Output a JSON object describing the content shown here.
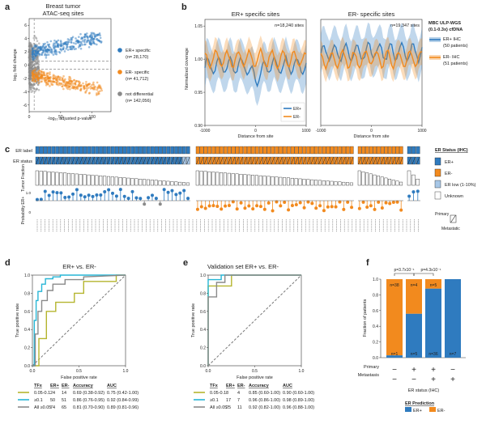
{
  "panels": {
    "a": {
      "letter": "a",
      "title": "Breast tumor",
      "subtitle": "ATAC-seq sites",
      "xlabel": "-log₁₀ adjusted p-value",
      "ylabel": "log₂ fold change",
      "xticks": [
        "0",
        "50",
        "100"
      ],
      "yticks": [
        "6",
        "4",
        "2",
        "0",
        "-2",
        "-4",
        "-6"
      ],
      "legend": [
        {
          "label": "ER+ specific",
          "count": "(n= 28,170)",
          "color": "#2f7bbf"
        },
        {
          "label": "ER- specific",
          "count": "(n= 41,712)",
          "color": "#f28a1e"
        },
        {
          "label": "not differential",
          "count": "(n= 142,056)",
          "color": "#8a8a8a"
        }
      ]
    },
    "b": {
      "letter": "b",
      "ylabel": "Normalized coverage",
      "xlabel": "Distance from site",
      "left_title": "ER+ specific sites",
      "right_title": "ER- specific sites",
      "left_n": "n=18,240 sites",
      "right_n": "n=19,347 sites",
      "yticks": [
        "1.05",
        "1.00",
        "0.95",
        "0.90"
      ],
      "xticks": [
        "-1000",
        "0",
        "1000"
      ],
      "legend_title1": "MBC ULP-WGS",
      "legend_title2": "(0.1-0.3x) cfDNA",
      "legend": [
        {
          "label": "ER+ IHC",
          "sub": "(50 patients)",
          "color": "#2f7bbf"
        },
        {
          "label": "ER- IHC",
          "sub": "(51 patients)",
          "color": "#f28a1e"
        }
      ],
      "inset_legend": [
        "ER+",
        "ER-"
      ]
    },
    "c": {
      "letter": "c",
      "row_labels": [
        "ER label",
        "ER status",
        "Tumor Fraction",
        "Probability ER+"
      ],
      "prob_ticks": [
        "1.0",
        "0"
      ],
      "legend_title": "ER Status (IHC)",
      "legend": [
        {
          "label": "ER+",
          "color": "#2f7bbf"
        },
        {
          "label": "ER-",
          "color": "#f28a1e"
        },
        {
          "label": "ER low (1-10%)",
          "color": "#a7c7e7"
        },
        {
          "label": "Unknown",
          "color": "#ffffff"
        }
      ],
      "primary_label": "Primary",
      "metastatic_label": "Metastatic"
    },
    "d": {
      "letter": "d",
      "title": "ER+ vs. ER-",
      "xlabel": "False positive rate",
      "ylabel": "True positive rate",
      "xticks": [
        "0.0",
        "0.5",
        "1.0"
      ],
      "yticks": [
        "1.0",
        "0.8",
        "0.6",
        "0.4",
        "0.2",
        "0.0"
      ],
      "table_headers": [
        "TFx",
        "ER+",
        "ER-",
        "Accuracy",
        "AUC"
      ],
      "table_rows": [
        [
          "0.05-0.1",
          "24",
          "14",
          "0.69 (0.38-0.92)",
          "0.75 (0.42-1.00)"
        ],
        [
          "≥0.1",
          "50",
          "51",
          "0.86 (0.76-0.95)",
          "0.92 (0.84-0.99)"
        ],
        [
          "All ≥0.05",
          "74",
          "65",
          "0.81 (0.70-0.90)",
          "0.89 (0.81-0.96)"
        ]
      ]
    },
    "e": {
      "letter": "e",
      "title": "Validation set ER+ vs. ER-",
      "xlabel": "False positive rate",
      "ylabel": "True positive rate",
      "xticks": [
        "0.0",
        "0.5",
        "1.0"
      ],
      "yticks": [
        "1.0",
        "0.8",
        "0.6",
        "0.4",
        "0.2",
        "0.0"
      ],
      "table_headers": [
        "TFx",
        "ER+",
        "ER-",
        "Accuracy",
        "AUC"
      ],
      "table_rows": [
        [
          "0.05-0.1",
          "8",
          "4",
          "0.85 (0.60-1.00)",
          "0.90 (0.60-1.00)"
        ],
        [
          "≥0.1",
          "17",
          "7",
          "0.96 (0.86-1.00)",
          "0.98 (0.89-1.00)"
        ],
        [
          "All ≥0.05",
          "25",
          "11",
          "0.92 (0.82-1.00)",
          "0.96 (0.88-1.00)"
        ]
      ]
    },
    "f": {
      "letter": "f",
      "ylabel": "Fraction of patients",
      "xlabel": "ER status (IHC)",
      "yticks": [
        "1.0",
        "0.8",
        "0.6",
        "0.4",
        "0.2",
        "0.0"
      ],
      "pvals": [
        "p=3.7x10⁻¹",
        "p=4.3x10⁻¹"
      ],
      "row_labels": [
        "Primary",
        "Metastasis"
      ],
      "signs_primary": [
        "−",
        "+",
        "+",
        "−"
      ],
      "signs_meta": [
        "−",
        "−",
        "+",
        "+"
      ],
      "legend_title": "ER Prediction",
      "legend": [
        {
          "label": "ER+",
          "color": "#2f7bbf"
        },
        {
          "label": "ER-",
          "color": "#f28a1e"
        }
      ]
    }
  },
  "chart_data": [
    {
      "type": "scatter",
      "title": "Breast tumor ATAC-seq sites",
      "xlabel": "-log₁₀ adjusted p-value",
      "ylabel": "log₂ fold change",
      "xlim": [
        0,
        130
      ],
      "ylim": [
        -7,
        7
      ],
      "series": [
        {
          "name": "ER+ specific",
          "count": 28170
        },
        {
          "name": "ER- specific",
          "count": 41712
        },
        {
          "name": "not differential",
          "count": 142056
        }
      ]
    },
    {
      "type": "line",
      "title": "ER+ specific sites",
      "xlim": [
        -1000,
        1000
      ],
      "ylim": [
        0.9,
        1.06
      ],
      "series": [
        {
          "name": "ER+ IHC",
          "level": 0.99
        },
        {
          "name": "ER- IHC",
          "level": 1.0
        }
      ]
    },
    {
      "type": "line",
      "title": "ER- specific sites",
      "xlim": [
        -1000,
        1000
      ],
      "ylim": [
        0.9,
        1.06
      ],
      "series": [
        {
          "name": "ER+ IHC",
          "level": 1.01
        },
        {
          "name": "ER- IHC",
          "level": 1.0
        }
      ]
    },
    {
      "type": "line",
      "title": "ER+ vs. ER-",
      "xlim": [
        0,
        1
      ],
      "ylim": [
        0,
        1
      ],
      "series": [
        {
          "name": "0.05-0.1",
          "color": "#b5b52e",
          "x": [
            0,
            0.07,
            0.07,
            0.15,
            0.15,
            0.25,
            0.25,
            0.45,
            0.45,
            0.55,
            0.55,
            0.9,
            0.9,
            1.0
          ],
          "y": [
            0,
            0,
            0.3,
            0.3,
            0.6,
            0.6,
            0.7,
            0.7,
            0.8,
            0.8,
            0.93,
            0.93,
            1.0,
            1.0
          ]
        },
        {
          "name": "≥0.1",
          "color": "#27b6d6",
          "x": [
            0,
            0.02,
            0.02,
            0.04,
            0.04,
            0.06,
            0.06,
            0.1,
            0.1,
            0.14,
            0.14,
            0.22,
            0.22,
            0.3,
            0.3,
            1.0
          ],
          "y": [
            0,
            0,
            0.5,
            0.5,
            0.72,
            0.72,
            0.82,
            0.82,
            0.9,
            0.9,
            0.96,
            0.96,
            0.98,
            0.98,
            1.0,
            1.0
          ]
        },
        {
          "name": "All ≥0.05",
          "color": "#8a8a8a",
          "x": [
            0,
            0.03,
            0.03,
            0.06,
            0.06,
            0.1,
            0.1,
            0.16,
            0.16,
            0.22,
            0.22,
            0.35,
            0.35,
            0.55,
            0.55,
            1.0
          ],
          "y": [
            0,
            0,
            0.35,
            0.35,
            0.6,
            0.6,
            0.72,
            0.72,
            0.83,
            0.83,
            0.9,
            0.9,
            0.95,
            0.95,
            0.98,
            1.0
          ]
        }
      ]
    },
    {
      "type": "line",
      "title": "Validation set ER+ vs. ER-",
      "xlim": [
        0,
        1
      ],
      "ylim": [
        0,
        1
      ],
      "series": [
        {
          "name": "0.05-0.1",
          "color": "#b5b52e",
          "x": [
            0,
            0,
            0.25,
            0.25,
            1.0
          ],
          "y": [
            0,
            0.88,
            0.88,
            1.0,
            1.0
          ]
        },
        {
          "name": "≥0.1",
          "color": "#27b6d6",
          "x": [
            0,
            0,
            0.14,
            0.14,
            1.0
          ],
          "y": [
            0,
            0.95,
            0.95,
            1.0,
            1.0
          ]
        },
        {
          "name": "All ≥0.05",
          "color": "#8a8a8a",
          "x": [
            0,
            0,
            0.09,
            0.09,
            0.18,
            0.18,
            1.0
          ],
          "y": [
            0,
            0.76,
            0.76,
            0.92,
            0.92,
            1.0,
            1.0
          ]
        }
      ]
    },
    {
      "type": "bar",
      "stacked": true,
      "ylabel": "Fraction of patients",
      "xlabel": "ER status (IHC)",
      "ylim": [
        0,
        1
      ],
      "categories": [
        "primary−/meta−",
        "primary+/meta−",
        "primary+/meta+",
        "primary−/meta+"
      ],
      "series": [
        {
          "name": "ER+",
          "values": [
            0.03,
            0.56,
            0.88,
            1.0
          ],
          "n": [
            "1",
            "5",
            "36",
            "7"
          ]
        },
        {
          "name": "ER-",
          "values": [
            0.97,
            0.44,
            0.12,
            0.0
          ],
          "n": [
            "38",
            "4",
            "5",
            ""
          ]
        }
      ]
    }
  ]
}
